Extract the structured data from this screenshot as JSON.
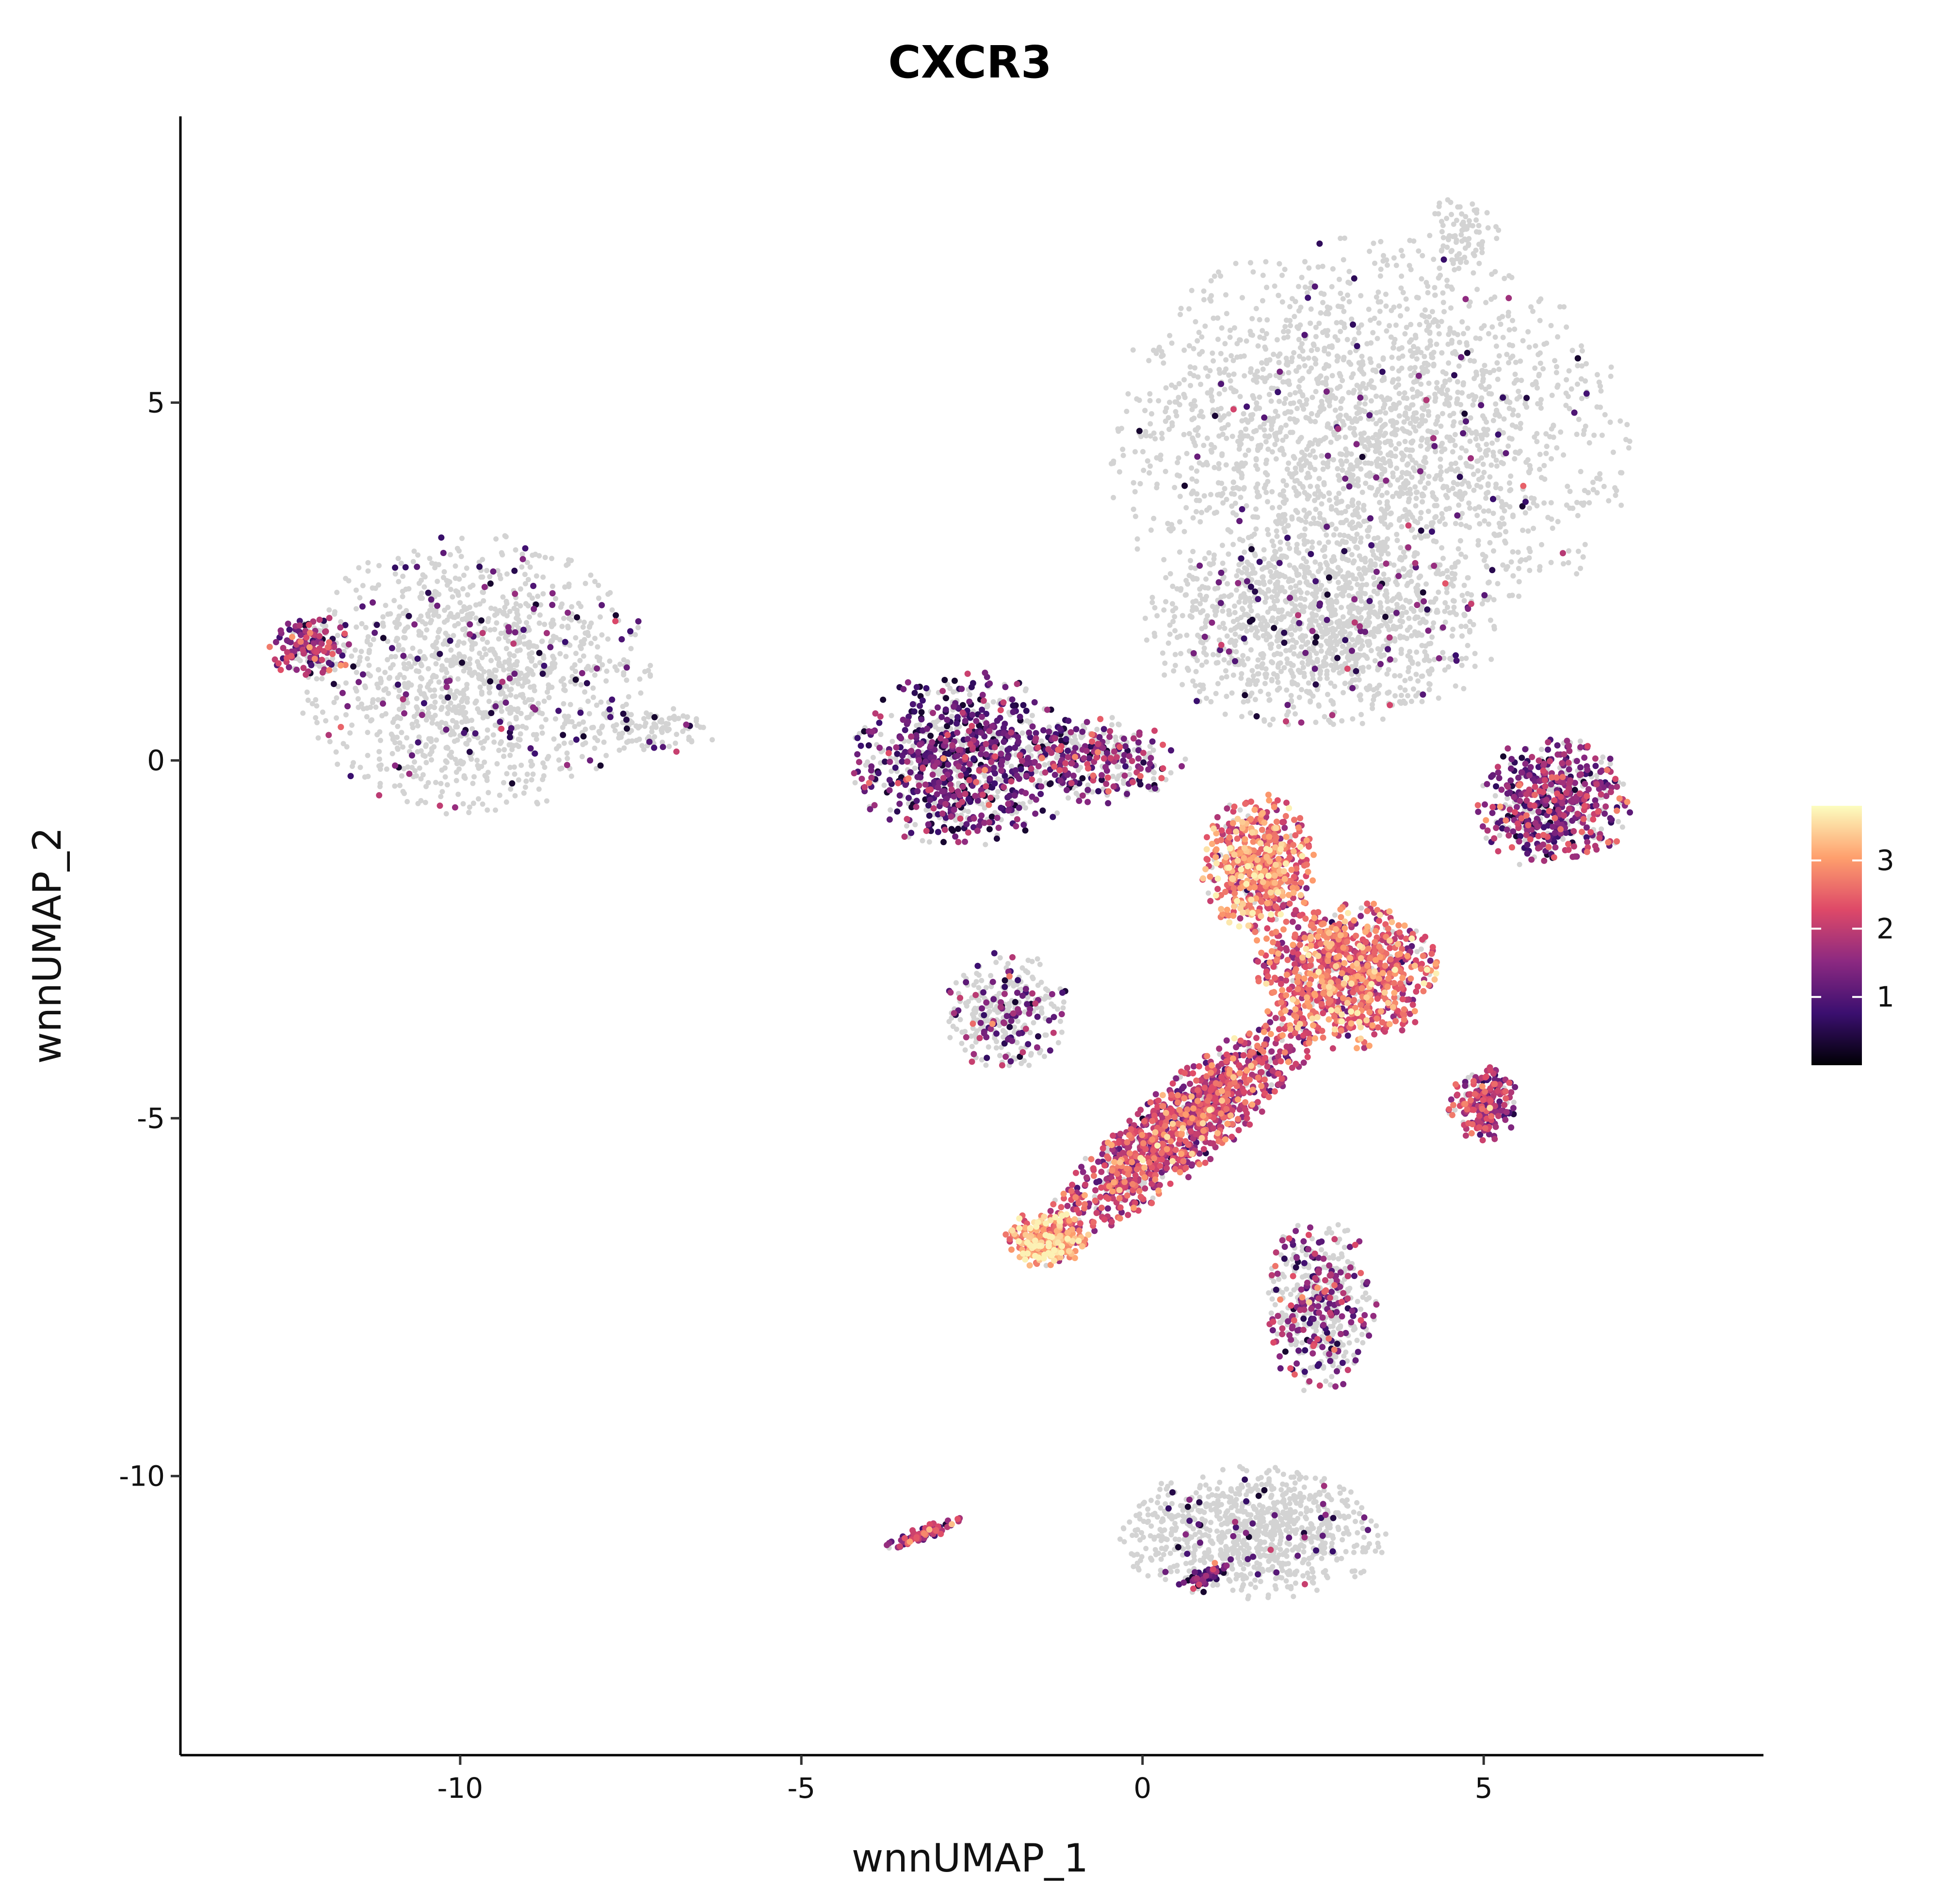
{
  "chart_data": {
    "type": "scatter",
    "title": "CXCR3",
    "xlabel": "wnnUMAP_1",
    "ylabel": "wnnUMAP_2",
    "xlim": [
      -14.1,
      9.1
    ],
    "ylim": [
      -13.9,
      9.0
    ],
    "xticks": [
      -10,
      -5,
      0,
      5
    ],
    "xtick_labels": [
      "-10",
      "-5",
      "0",
      "5"
    ],
    "yticks": [
      -10,
      -5,
      0,
      5
    ],
    "ytick_labels": [
      "-10",
      "-5",
      "0",
      "5"
    ],
    "grid": false,
    "legend": {
      "type": "colorbar",
      "placement": "right",
      "range": [
        0,
        3.8
      ],
      "ticks": [
        1,
        2,
        3
      ],
      "tick_labels": [
        "1",
        "2",
        "3"
      ],
      "colormap": [
        "#000004",
        "#3b0f70",
        "#8c2981",
        "#de4968",
        "#fe9f6d",
        "#fcfdbf"
      ]
    },
    "background_color": "#d3d3d3",
    "regions": [
      {
        "name": "upper-large-cluster",
        "cx": 3.3,
        "cy": 4.4,
        "rx": 3.7,
        "ry": 2.8,
        "weight": 1.0,
        "expr_rate": 0.03,
        "expr_mean": 1.0
      },
      {
        "name": "upper-stem",
        "cx": 2.6,
        "cy": 1.8,
        "rx": 2.5,
        "ry": 1.3,
        "weight": 0.45,
        "expr_rate": 0.06,
        "expr_mean": 1.1
      },
      {
        "name": "top-notch",
        "cx": 4.7,
        "cy": 7.4,
        "rx": 0.5,
        "ry": 0.5,
        "weight": 0.03,
        "expr_rate": 0.0,
        "expr_mean": 0.0
      },
      {
        "name": "left-island",
        "cx": -9.8,
        "cy": 1.2,
        "rx": 2.5,
        "ry": 1.9,
        "weight": 0.5,
        "expr_rate": 0.1,
        "expr_mean": 1.1
      },
      {
        "name": "left-island-tip",
        "cx": -12.2,
        "cy": 1.6,
        "rx": 0.6,
        "ry": 0.45,
        "weight": 0.06,
        "expr_rate": 0.75,
        "expr_mean": 1.6
      },
      {
        "name": "left-island-tail",
        "cx": -7.2,
        "cy": 0.4,
        "rx": 0.9,
        "ry": 0.35,
        "weight": 0.04,
        "expr_rate": 0.05,
        "expr_mean": 1.0
      },
      {
        "name": "left-arm",
        "cx": -2.6,
        "cy": 0.0,
        "rx": 1.6,
        "ry": 1.2,
        "weight": 0.35,
        "expr_rate": 0.65,
        "expr_mean": 1.0
      },
      {
        "name": "left-arm-bridge",
        "cx": -0.6,
        "cy": 0.0,
        "rx": 1.2,
        "ry": 0.6,
        "weight": 0.12,
        "expr_rate": 0.55,
        "expr_mean": 1.4
      },
      {
        "name": "right-blob",
        "cx": 6.0,
        "cy": -0.6,
        "rx": 1.1,
        "ry": 0.9,
        "weight": 0.22,
        "expr_rate": 0.72,
        "expr_mean": 1.4
      },
      {
        "name": "central-upper",
        "cx": 1.7,
        "cy": -1.5,
        "rx": 0.8,
        "ry": 1.0,
        "weight": 0.22,
        "expr_rate": 0.9,
        "expr_mean": 2.6
      },
      {
        "name": "central-core",
        "cx": 3.0,
        "cy": -3.0,
        "rx": 1.3,
        "ry": 1.0,
        "weight": 0.35,
        "expr_rate": 0.9,
        "expr_mean": 2.4
      },
      {
        "name": "diagonal-band",
        "cx": 0.6,
        "cy": -5.1,
        "rx": 2.4,
        "ry": 0.6,
        "weight": 0.45,
        "expr_rate": 0.85,
        "expr_mean": 2.0,
        "angle": 38
      },
      {
        "name": "lower-left-end",
        "cx": -1.4,
        "cy": -6.7,
        "rx": 0.6,
        "ry": 0.4,
        "weight": 0.1,
        "expr_rate": 0.95,
        "expr_mean": 3.0
      },
      {
        "name": "side-cluster",
        "cx": 5.0,
        "cy": -4.8,
        "rx": 0.5,
        "ry": 0.5,
        "weight": 0.08,
        "expr_rate": 0.85,
        "expr_mean": 1.7
      },
      {
        "name": "left-middle-patch",
        "cx": -2.0,
        "cy": -3.5,
        "rx": 0.9,
        "ry": 0.8,
        "weight": 0.12,
        "expr_rate": 0.3,
        "expr_mean": 1.2
      },
      {
        "name": "lower-stem",
        "cx": 2.6,
        "cy": -7.6,
        "rx": 0.8,
        "ry": 1.2,
        "weight": 0.18,
        "expr_rate": 0.4,
        "expr_mean": 1.5
      },
      {
        "name": "bottom-cluster",
        "cx": 1.6,
        "cy": -10.8,
        "rx": 1.9,
        "ry": 0.9,
        "weight": 0.35,
        "expr_rate": 0.05,
        "expr_mean": 1.0
      },
      {
        "name": "bottom-sliver",
        "cx": -3.2,
        "cy": -10.8,
        "rx": 0.6,
        "ry": 0.1,
        "weight": 0.03,
        "expr_rate": 0.95,
        "expr_mean": 1.8,
        "angle": 18
      },
      {
        "name": "bottom-sliver-2",
        "cx": 0.9,
        "cy": -11.4,
        "rx": 0.4,
        "ry": 0.12,
        "weight": 0.02,
        "expr_rate": 0.9,
        "expr_mean": 1.2,
        "angle": 25
      }
    ]
  }
}
